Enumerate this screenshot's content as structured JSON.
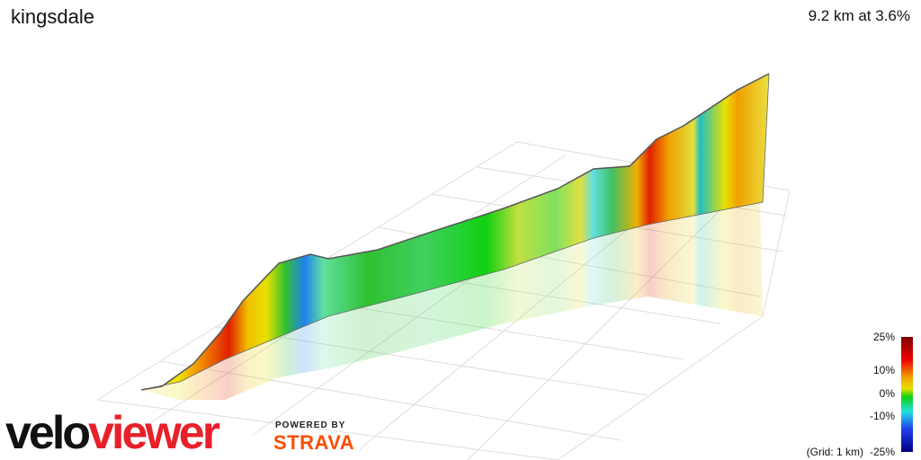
{
  "header": {
    "title": "kingsdale",
    "stats": "9.2 km at 3.6%"
  },
  "legend": {
    "labels": [
      "25%",
      "10%",
      "0%",
      "-10%",
      "-25%"
    ],
    "grid_note": "(Grid: 1 km)"
  },
  "branding": {
    "logo_part1": "velo",
    "logo_part2": "viewer",
    "powered": "POWERED BY",
    "strava": "STRAVA"
  }
}
